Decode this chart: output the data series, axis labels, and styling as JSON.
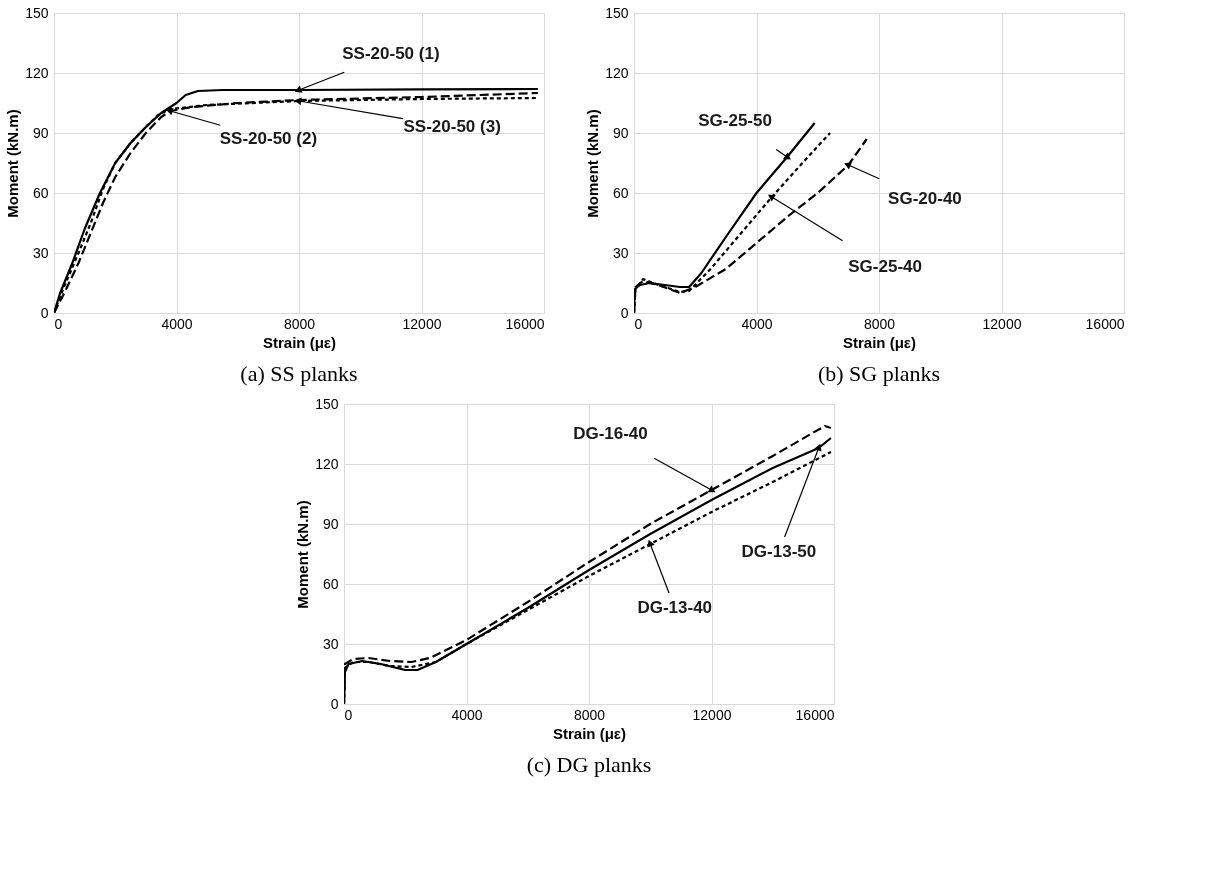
{
  "chart_data": [
    {
      "type": "line",
      "title": "(a) SS planks",
      "xlabel": "Strain (με)",
      "ylabel": "Moment (kN.m)",
      "xlim": [
        0,
        16000
      ],
      "ylim": [
        0,
        150
      ],
      "xticks": [
        0,
        4000,
        8000,
        12000,
        16000
      ],
      "yticks": [
        0,
        30,
        60,
        90,
        120,
        150
      ],
      "grid": true,
      "series": [
        {
          "name": "SS-20-50 (1)",
          "color": "#000000",
          "line_style": "solid",
          "x": [
            0,
            200,
            600,
            1000,
            1500,
            2000,
            2500,
            3000,
            3500,
            4000,
            4300,
            4700,
            5500,
            8000,
            12000,
            15800
          ],
          "values": [
            0,
            10,
            25,
            42,
            60,
            75,
            85,
            93,
            100,
            105,
            109,
            111,
            111.5,
            111.5,
            111.8,
            112
          ]
        },
        {
          "name": "SS-20-50 (2)",
          "color": "#000000",
          "line_style": "dashed",
          "x": [
            0,
            400,
            800,
            1200,
            1600,
            2000,
            2500,
            3000,
            3500,
            3800,
            4500,
            6000,
            8000,
            12000,
            15800
          ],
          "values": [
            0,
            12,
            25,
            40,
            55,
            68,
            80,
            90,
            98,
            101,
            103,
            105,
            106.5,
            108,
            110
          ]
        },
        {
          "name": "SS-20-50 (3)",
          "color": "#000000",
          "line_style": "dotted",
          "x": [
            0,
            300,
            800,
            1200,
            1600,
            2000,
            2500,
            3000,
            3400,
            3800,
            5000,
            8000,
            12000,
            15800
          ],
          "values": [
            0,
            12,
            30,
            45,
            62,
            75,
            85,
            93,
            99,
            102,
            104,
            106,
            107,
            107.5
          ]
        }
      ]
    },
    {
      "type": "line",
      "title": "(b) SG planks",
      "xlabel": "Strain (με)",
      "ylabel": "Moment (kN.m)",
      "xlim": [
        0,
        16000
      ],
      "ylim": [
        0,
        150
      ],
      "xticks": [
        0,
        4000,
        8000,
        12000,
        16000
      ],
      "yticks": [
        0,
        30,
        60,
        90,
        120,
        150
      ],
      "grid": true,
      "series": [
        {
          "name": "SG-25-50",
          "color": "#000000",
          "line_style": "solid",
          "x": [
            0,
            30,
            200,
            500,
            1000,
            1500,
            1800,
            2200,
            3000,
            4000,
            5000,
            5900
          ],
          "values": [
            0,
            12,
            14,
            15,
            14,
            13,
            13,
            20,
            38,
            60,
            78,
            95
          ]
        },
        {
          "name": "SG-25-40",
          "color": "#000000",
          "line_style": "dotted",
          "x": [
            0,
            50,
            300,
            800,
            1500,
            1800,
            2500,
            3500,
            4500,
            5500,
            6400
          ],
          "values": [
            0,
            12,
            17,
            14,
            10.5,
            11,
            22,
            40,
            58,
            75,
            90
          ]
        },
        {
          "name": "SG-20-40",
          "color": "#000000",
          "line_style": "dashed",
          "x": [
            0,
            50,
            300,
            800,
            1500,
            2000,
            3000,
            4000,
            5000,
            6000,
            7000,
            7600
          ],
          "values": [
            0,
            13,
            16,
            14,
            10,
            13,
            22,
            35,
            48,
            60,
            74,
            87
          ]
        }
      ]
    },
    {
      "type": "line",
      "title": "(c) DG planks",
      "xlabel": "Strain (με)",
      "ylabel": "Moment (kN.m)",
      "xlim": [
        0,
        16000
      ],
      "ylim": [
        0,
        150
      ],
      "xticks": [
        0,
        4000,
        8000,
        12000,
        16000
      ],
      "yticks": [
        0,
        30,
        60,
        90,
        120,
        150
      ],
      "grid": true,
      "series": [
        {
          "name": "DG-13-50",
          "color": "#000000",
          "line_style": "solid",
          "x": [
            0,
            30,
            150,
            600,
            1200,
            2000,
            2400,
            3000,
            4000,
            6000,
            8000,
            10000,
            12000,
            14000,
            15500,
            15900
          ],
          "values": [
            0,
            16,
            20,
            21.5,
            20,
            17,
            17,
            21,
            30,
            48,
            67,
            85,
            102,
            118,
            128,
            133
          ]
        },
        {
          "name": "DG-16-40",
          "color": "#000000",
          "line_style": "dashed",
          "x": [
            0,
            30,
            300,
            800,
            1500,
            2200,
            2800,
            4000,
            6000,
            8000,
            10000,
            12000,
            14000,
            15700,
            15900
          ],
          "values": [
            0,
            20,
            22.5,
            23,
            21.5,
            21,
            23,
            32,
            51,
            71,
            90,
            107,
            124,
            139,
            138
          ]
        },
        {
          "name": "DG-13-40",
          "color": "#000000",
          "line_style": "dotted",
          "x": [
            0,
            30,
            300,
            800,
            1500,
            2200,
            3000,
            4000,
            6000,
            8000,
            10000,
            12000,
            14000,
            15900
          ],
          "values": [
            0,
            18,
            21,
            21,
            19,
            18.5,
            21,
            30,
            47,
            64,
            80,
            96,
            111,
            126
          ]
        }
      ]
    }
  ]
}
